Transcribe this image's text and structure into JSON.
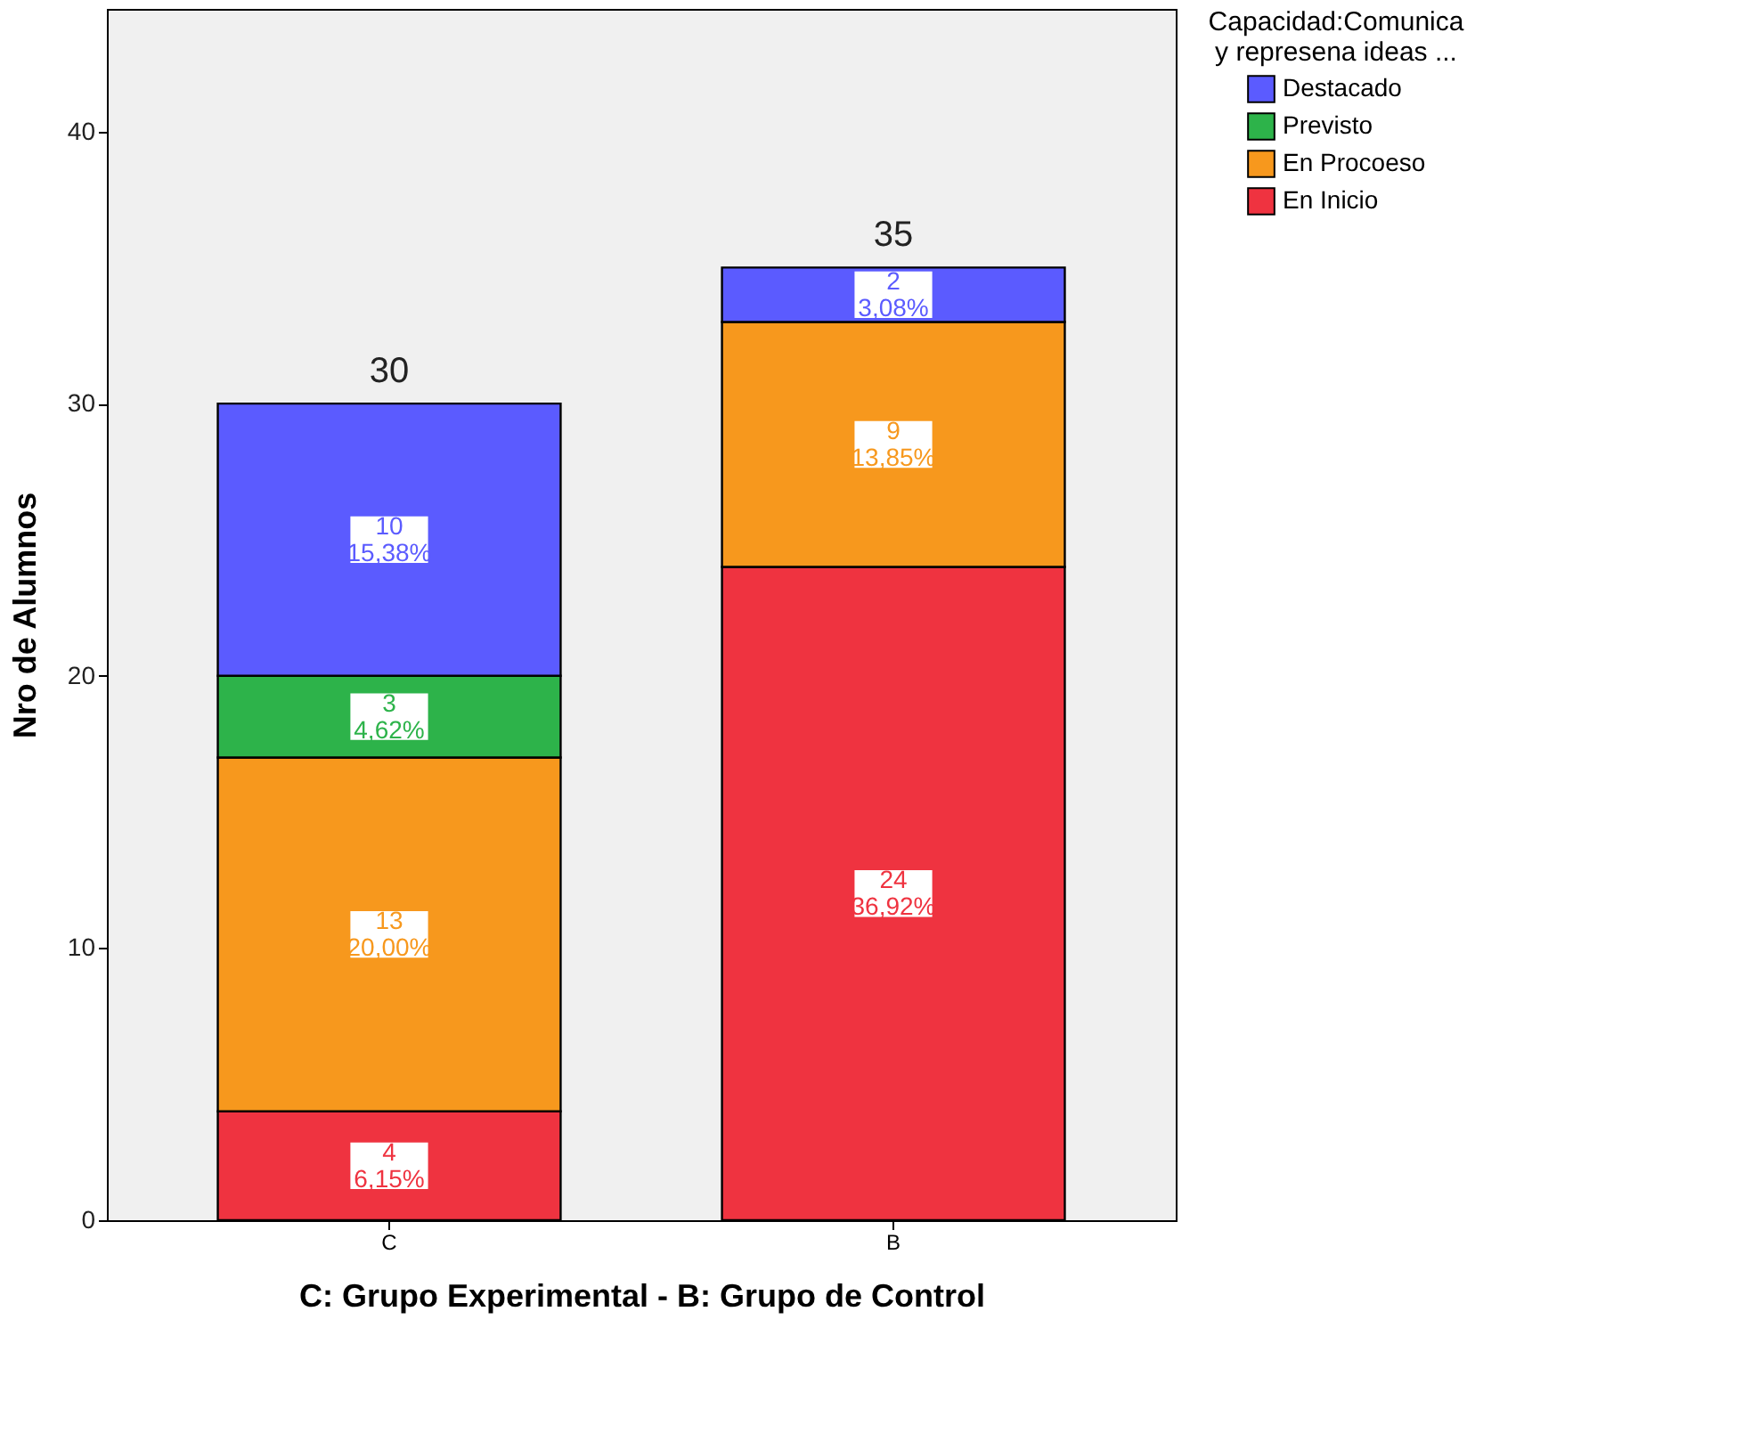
{
  "chart_data": {
    "type": "bar",
    "stacked": true,
    "xlabel": "C: Grupo Experimental - B: Grupo de Control",
    "ylabel": "Nro de Alumnos",
    "legend_title": "Capacidad:Comunica\ny represena ideas ...",
    "legend": "top right",
    "grid": false,
    "categories": [
      "C",
      "B"
    ],
    "ylim": [
      0,
      44.5
    ],
    "yticks": [
      0,
      10,
      20,
      30,
      40
    ],
    "series": [
      {
        "name": "En Inicio",
        "color": "#ef3340",
        "values": [
          4,
          24
        ],
        "value_labels": [
          "4\n6,15%",
          "24\n36,92%"
        ]
      },
      {
        "name": "En Procoeso",
        "color": "#f7981d",
        "values": [
          13,
          9
        ],
        "value_labels": [
          "13\n20,00%",
          "9\n13,85%"
        ]
      },
      {
        "name": "Previsto",
        "color": "#2db34a",
        "values": [
          3,
          null
        ],
        "value_labels": [
          "3\n4,62%",
          null
        ]
      },
      {
        "name": "Destacado",
        "color": "#5b5bff",
        "values": [
          10,
          2
        ],
        "value_labels": [
          "10\n15,38%",
          "2\n3,08%"
        ]
      }
    ],
    "totals": [
      "30",
      "35"
    ]
  }
}
